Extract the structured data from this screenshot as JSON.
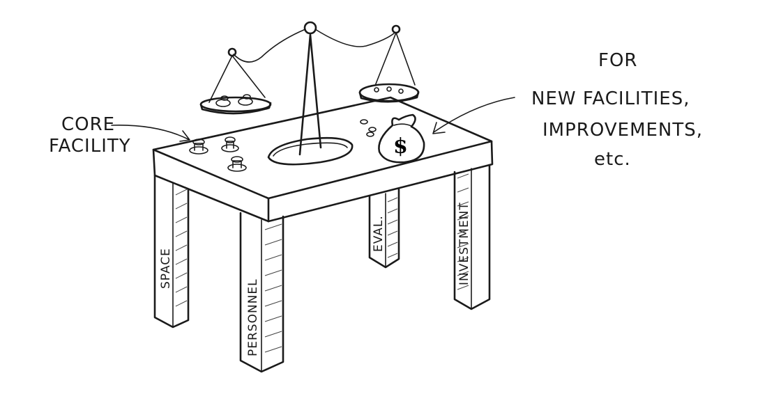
{
  "notes": {
    "core_facility_line1": "CORE",
    "core_facility_line2": "FACILITY",
    "right_line1": "FOR",
    "right_line2": "NEW FACILITIES,",
    "right_line3": "IMPROVEMENTS,",
    "right_line4": "etc."
  },
  "legs": {
    "front_left": "SPACE",
    "front_right": "PERSONNEL",
    "back_middle": "EVAL.",
    "back_right": "INVESTMENT"
  },
  "money_bag": {
    "symbol": "$"
  },
  "colors": {
    "ink": "#1a1a1a",
    "background": "#ffffff"
  }
}
